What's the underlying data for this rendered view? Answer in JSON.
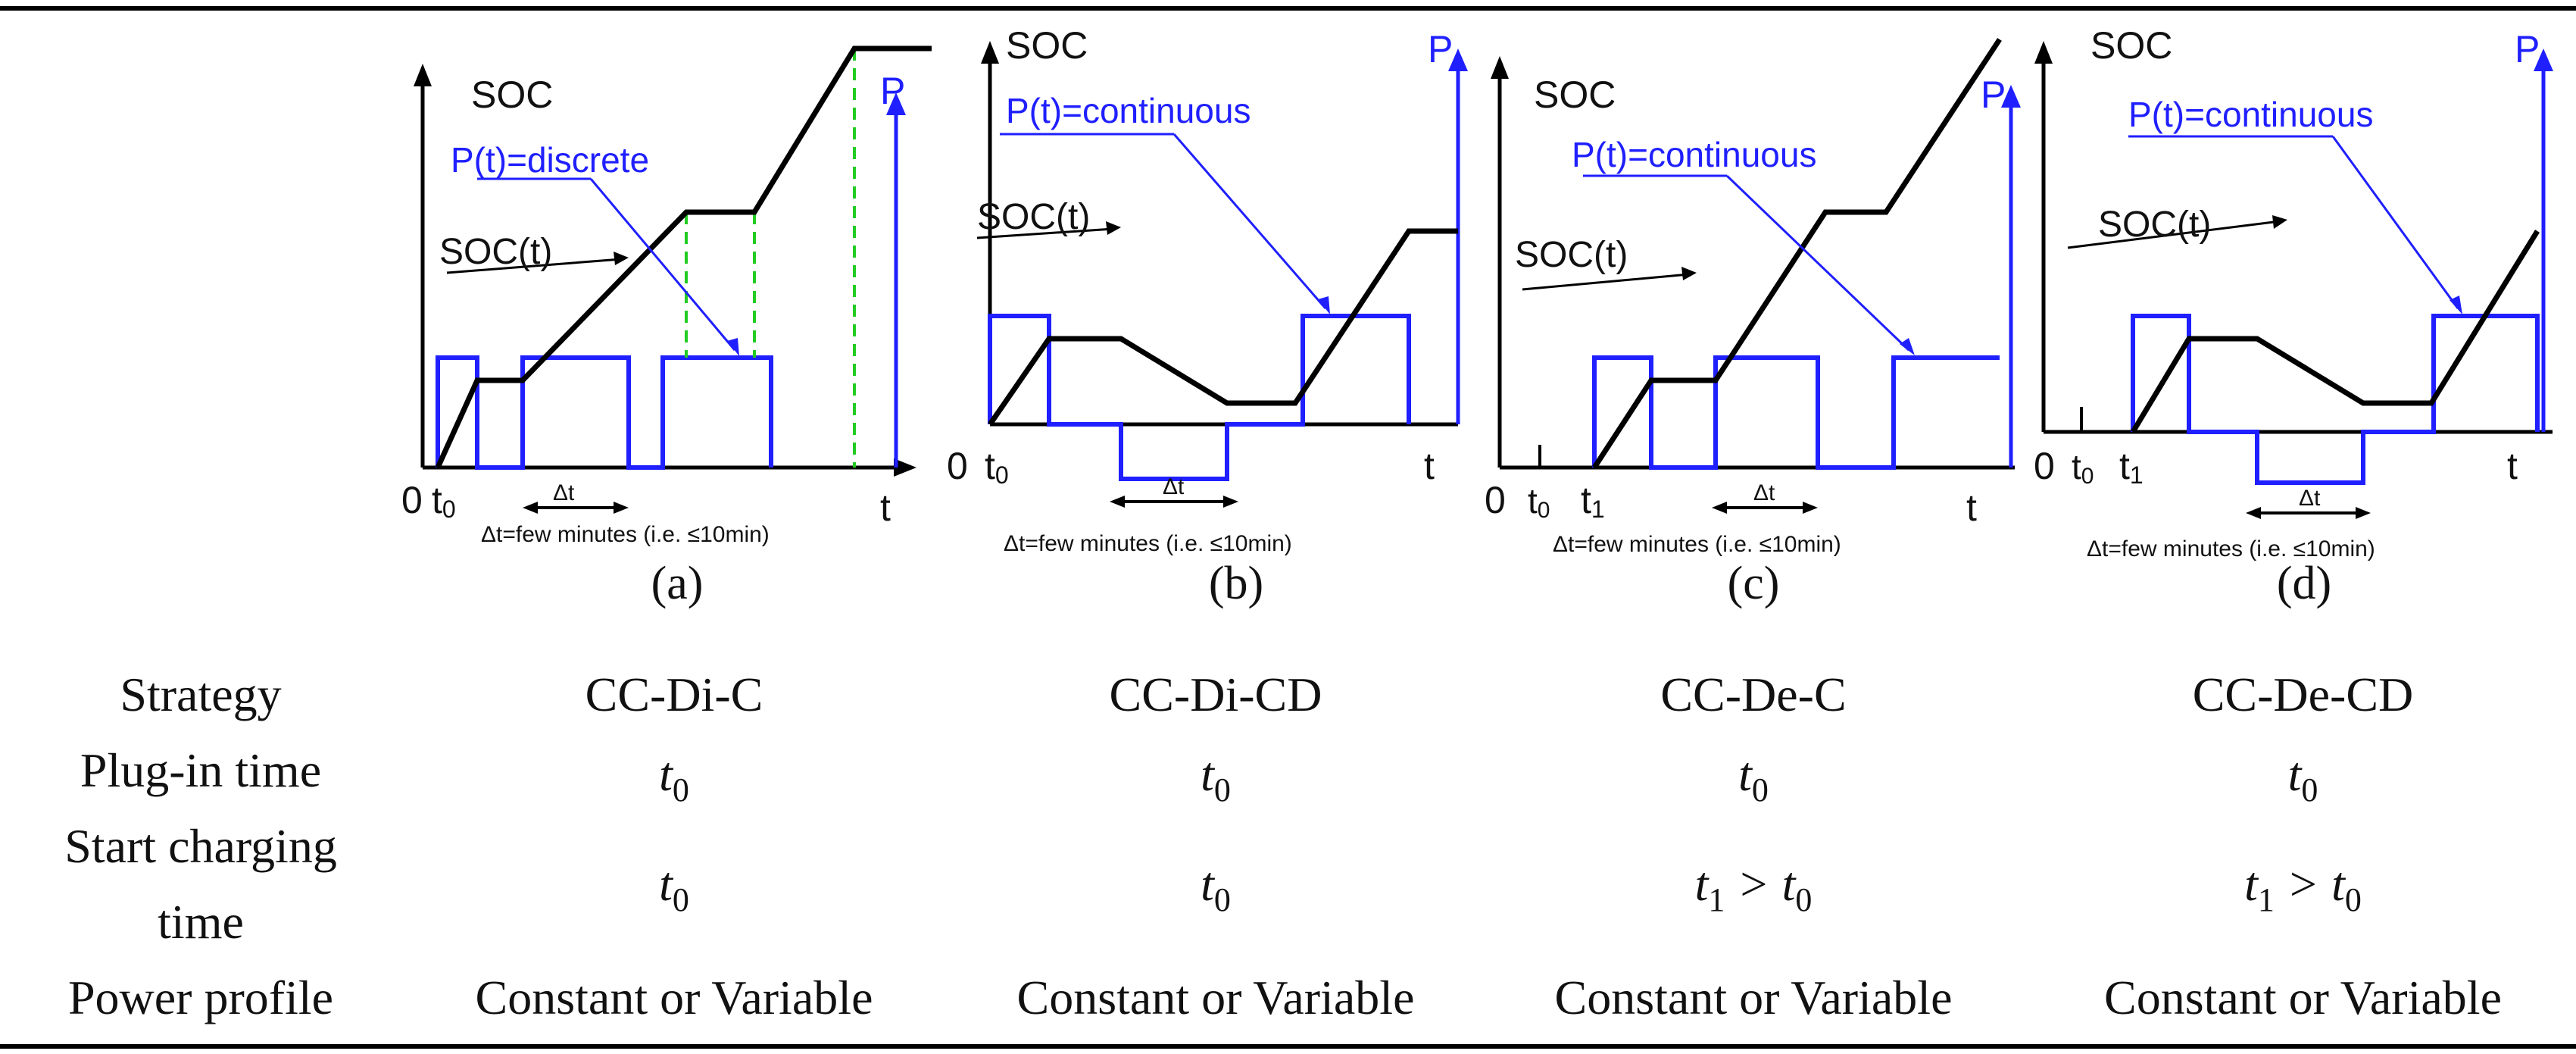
{
  "panels": [
    {
      "id": "a",
      "soc_label": "SOC",
      "p_label": "P",
      "profile_label": "P(t)=discrete",
      "soc_curve_label": "SOC(t)",
      "origin_label": "0",
      "t0_label": "t",
      "t0_sub": "0",
      "t1_label": "",
      "t1_sub": "",
      "t_label": "t",
      "dt_label": "Δt",
      "dt_note": "Δt=few minutes (i.e. ≤10min)",
      "caption": "(a)"
    },
    {
      "id": "b",
      "soc_label": "SOC",
      "p_label": "P",
      "profile_label": "P(t)=continuous",
      "soc_curve_label": "SOC(t)",
      "origin_label": "0",
      "t0_label": "t",
      "t0_sub": "0",
      "t1_label": "",
      "t1_sub": "",
      "t_label": "t",
      "dt_label": "Δt",
      "dt_note": "Δt=few minutes (i.e. ≤10min)",
      "caption": "(b)"
    },
    {
      "id": "c",
      "soc_label": "SOC",
      "p_label": "P",
      "profile_label": "P(t)=continuous",
      "soc_curve_label": "SOC(t)",
      "origin_label": "0",
      "t0_label": "t",
      "t0_sub": "0",
      "t1_label": "t",
      "t1_sub": "1",
      "t_label": "t",
      "dt_label": "Δt",
      "dt_note": "Δt=few minutes (i.e. ≤10min)",
      "caption": "(c)"
    },
    {
      "id": "d",
      "soc_label": "SOC",
      "p_label": "P",
      "profile_label": "P(t)=continuous",
      "soc_curve_label": "SOC(t)",
      "origin_label": "0",
      "t0_label": "t",
      "t0_sub": "0",
      "t1_label": "t",
      "t1_sub": "1",
      "t_label": "t",
      "dt_label": "Δt",
      "dt_note": "Δt=few minutes (i.e. ≤10min)",
      "caption": "(d)"
    }
  ],
  "table": {
    "row_headers": {
      "strategy": "Strategy",
      "plugin": "Plug-in time",
      "start_line1": "Start charging",
      "start_line2": "time",
      "power": "Power profile"
    },
    "strategy": [
      "CC-Di-C",
      "CC-Di-CD",
      "CC-De-C",
      "CC-De-CD"
    ],
    "plugin": [
      {
        "base": "t",
        "sub": "0",
        "rest": ""
      },
      {
        "base": "t",
        "sub": "0",
        "rest": ""
      },
      {
        "base": "t",
        "sub": "0",
        "rest": ""
      },
      {
        "base": "t",
        "sub": "0",
        "rest": ""
      }
    ],
    "start": [
      {
        "base": "t",
        "sub": "0",
        "op": "",
        "base2": "",
        "sub2": ""
      },
      {
        "base": "t",
        "sub": "0",
        "op": "",
        "base2": "",
        "sub2": ""
      },
      {
        "base": "t",
        "sub": "1",
        "op": " > ",
        "base2": "t",
        "sub2": "0"
      },
      {
        "base": "t",
        "sub": "1",
        "op": " > ",
        "base2": "t",
        "sub2": "0"
      }
    ],
    "power": [
      "Constant or Variable",
      "Constant or Variable",
      "Constant or Variable",
      "Constant or Variable"
    ]
  },
  "colors": {
    "soc_line": "#000000",
    "power_line": "#1f1fff",
    "guide_line": "#22cc22",
    "text": "#111111"
  }
}
